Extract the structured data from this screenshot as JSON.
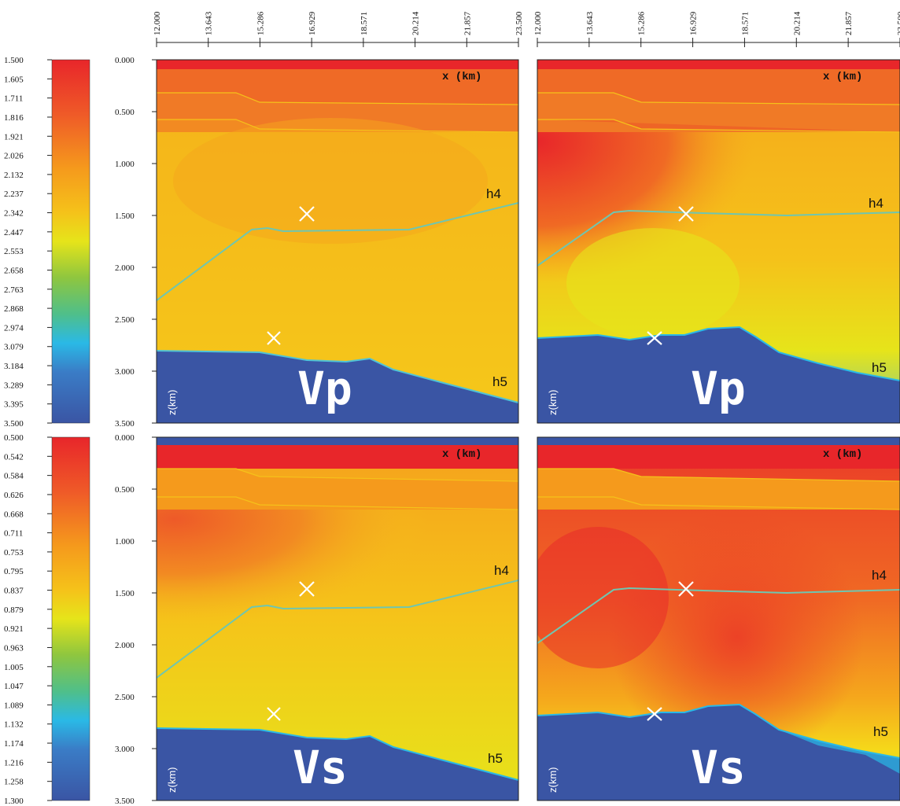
{
  "colorbars": [
    {
      "name": "vp-colorbar",
      "labels": [
        "1.500",
        "1.605",
        "1.711",
        "1.816",
        "1.921",
        "2.026",
        "2.132",
        "2.237",
        "2.342",
        "2.447",
        "2.553",
        "2.658",
        "2.763",
        "2.868",
        "2.974",
        "3.079",
        "3.184",
        "3.289",
        "3.395",
        "3.500"
      ]
    },
    {
      "name": "vs-colorbar",
      "labels": [
        "0.500",
        "0.542",
        "0.584",
        "0.626",
        "0.668",
        "0.711",
        "0.753",
        "0.795",
        "0.837",
        "0.879",
        "0.921",
        "0.963",
        "1.005",
        "1.047",
        "1.089",
        "1.132",
        "1.174",
        "1.216",
        "1.258",
        "1.300"
      ]
    }
  ],
  "x_ticks_left": [
    "12.000",
    "13.643",
    "15.286",
    "16.929",
    "18.571",
    "20.214",
    "21.857",
    "23.500"
  ],
  "x_ticks_right": [
    "12.000",
    "13.643",
    "15.286",
    "16.929",
    "18.571",
    "20.214",
    "21.857",
    "23.500"
  ],
  "z_ticks": [
    "0.000",
    "0.500",
    "1.000",
    "1.500",
    "2.000",
    "2.500",
    "3.000",
    "3.500"
  ],
  "x_label": "x (km)",
  "z_label": "z(km)",
  "horizon_labels": [
    "h4",
    "h5"
  ],
  "panel_labels": {
    "vp": "Vp",
    "vs": "Vs"
  },
  "colors": {
    "red": "#e8262a",
    "orange": "#ef6a26",
    "orange_yellow": "#f59a1c",
    "yellow": "#f5c21a",
    "yellow_green": "#e6e41a",
    "cyan": "#2ab9e6",
    "blue": "#3a55a4",
    "horizon": "#6fc6b0"
  }
}
